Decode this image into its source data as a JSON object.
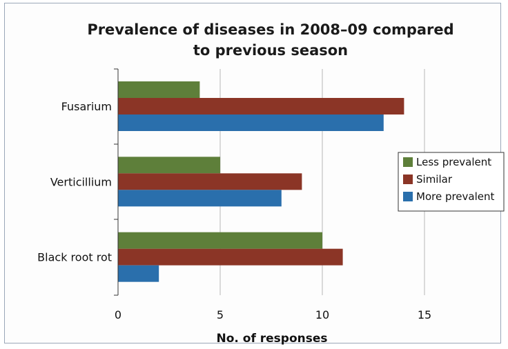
{
  "chart_data": {
    "type": "bar",
    "orientation": "horizontal",
    "title_lines": [
      "Prevalence of diseases in 2008–09 compared",
      "to previous season"
    ],
    "xlabel": "No. of responses",
    "ylabel": "",
    "categories": [
      "Fusarium",
      "Verticillium",
      "Black root rot"
    ],
    "series": [
      {
        "name": "Less prevalent",
        "color": "#5e7f3a",
        "values": [
          4,
          5,
          10
        ]
      },
      {
        "name": "Similar",
        "color": "#8b3526",
        "values": [
          14,
          9,
          11
        ]
      },
      {
        "name": "More prevalent",
        "color": "#2a6fac",
        "values": [
          13,
          8,
          2
        ]
      }
    ],
    "xlim": [
      0,
      15
    ],
    "xticks": [
      0,
      5,
      10,
      15
    ],
    "grid": true,
    "legend_position": "right"
  }
}
